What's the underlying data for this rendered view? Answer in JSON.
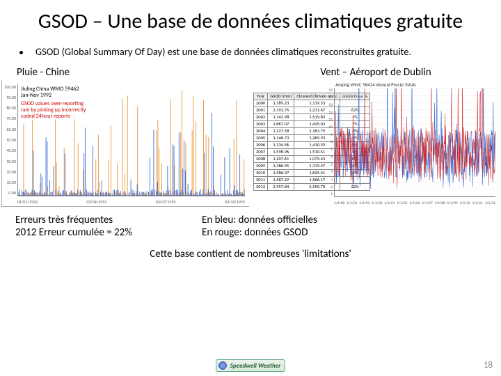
{
  "title": "GSOD – Une base de données climatiques gratuite",
  "bullet": "GSOD (Global Summary Of Day) est une base de données climatiques reconstruites gratuite.",
  "left_chart": {
    "label": "Pluie - Chine",
    "annot_header": "Jiuling China WMO 59462",
    "annot_sub": "Jan-Nov 1992",
    "annot_note1": "GSOD values over-reporting",
    "annot_note2": "rain by picking up incorrectly",
    "annot_note3": "coded 24hour reports",
    "x0": "01/01/1992",
    "x1": "02/04/1992",
    "x2": "03/07/1992",
    "x3": "03/10/1992",
    "y_ticks": [
      "100.00",
      "90.00",
      "80.00",
      "70.00",
      "60.00",
      "50.00",
      "40.00",
      "30.00",
      "20.00",
      "10.00",
      "0.00"
    ],
    "series": {
      "blue_color": "#2a5fd0",
      "orange_color": "#e68a1f",
      "n": 180,
      "blue_base": 6,
      "orange_base": 4,
      "blue_spike_prob": 0.14,
      "orange_spike_prob": 0.22,
      "blue_spike_max": 72,
      "orange_spike_max": 95
    }
  },
  "right_chart": {
    "label": "Vent – Aéroport de Dublin",
    "plot_title": "Anqing WMC 58424 Annual Precip Totals",
    "table": {
      "headers": [
        "Year",
        "GSOD (mm)",
        "Cleaned Climate (mm)",
        "GSOD Error %"
      ],
      "rows": [
        [
          "2000",
          "1,189.23",
          "1,119.53",
          ""
        ],
        [
          "2001",
          "2,193.75",
          "1,211.67",
          "62%"
        ],
        [
          "2002",
          "1,143.98",
          "1,519.83",
          "5%"
        ],
        [
          "2003",
          "1,867.07",
          "1,435.03",
          "7%"
        ],
        [
          "2004",
          "1,227.58",
          "1,163.79",
          "3%"
        ],
        [
          "2005",
          "1,146.73",
          "1,269.93",
          "5%"
        ],
        [
          "2006",
          "1,334.56",
          "1,410.93",
          "9%"
        ],
        [
          "2007",
          "1,598.96",
          "1,510.51",
          "4%"
        ],
        [
          "2008",
          "1,207.61",
          "1,079.43",
          "19%"
        ],
        [
          "2009",
          "1,386.95",
          "1,319.47",
          "6%"
        ],
        [
          "2010",
          "1,586.07",
          "1,625.41",
          "6%"
        ],
        [
          "2011",
          "1,587.29",
          "1,566.17",
          ""
        ],
        [
          "2012",
          "2,957.84",
          "2,550.70",
          "22%"
        ]
      ]
    },
    "y_ticks": [
      "1",
      "2",
      "3",
      "4",
      "5",
      "6",
      "7",
      "8",
      "9",
      "10",
      "11",
      "12",
      "13",
      "14",
      "15"
    ],
    "x_ticks": [
      "1/1/00",
      "1/1/01",
      "1/1/02",
      "1/1/03",
      "1/1/04",
      "1/1/05",
      "1/1/06",
      "1/1/07",
      "1/1/08",
      "1/1/09",
      "1/1/10",
      "1/1/11",
      "1/1/12"
    ],
    "series": {
      "blue_color": "#2a5fd0",
      "red_color": "#d02a2a",
      "n": 440,
      "base": 6.0,
      "noise": 3.5,
      "spike_prob": 0.06,
      "spike_max": 14.5
    }
  },
  "cap_left_1": "Erreurs très fréquentes",
  "cap_left_2": "2012 Erreur cumulée = 22%",
  "cap_right_1": "En bleu: données officielles",
  "cap_right_2": "En rouge: données GSOD",
  "footer": "Cette base contient de nombreuses 'limitations'",
  "logo_text": "Speedwell Weather",
  "page": "18"
}
